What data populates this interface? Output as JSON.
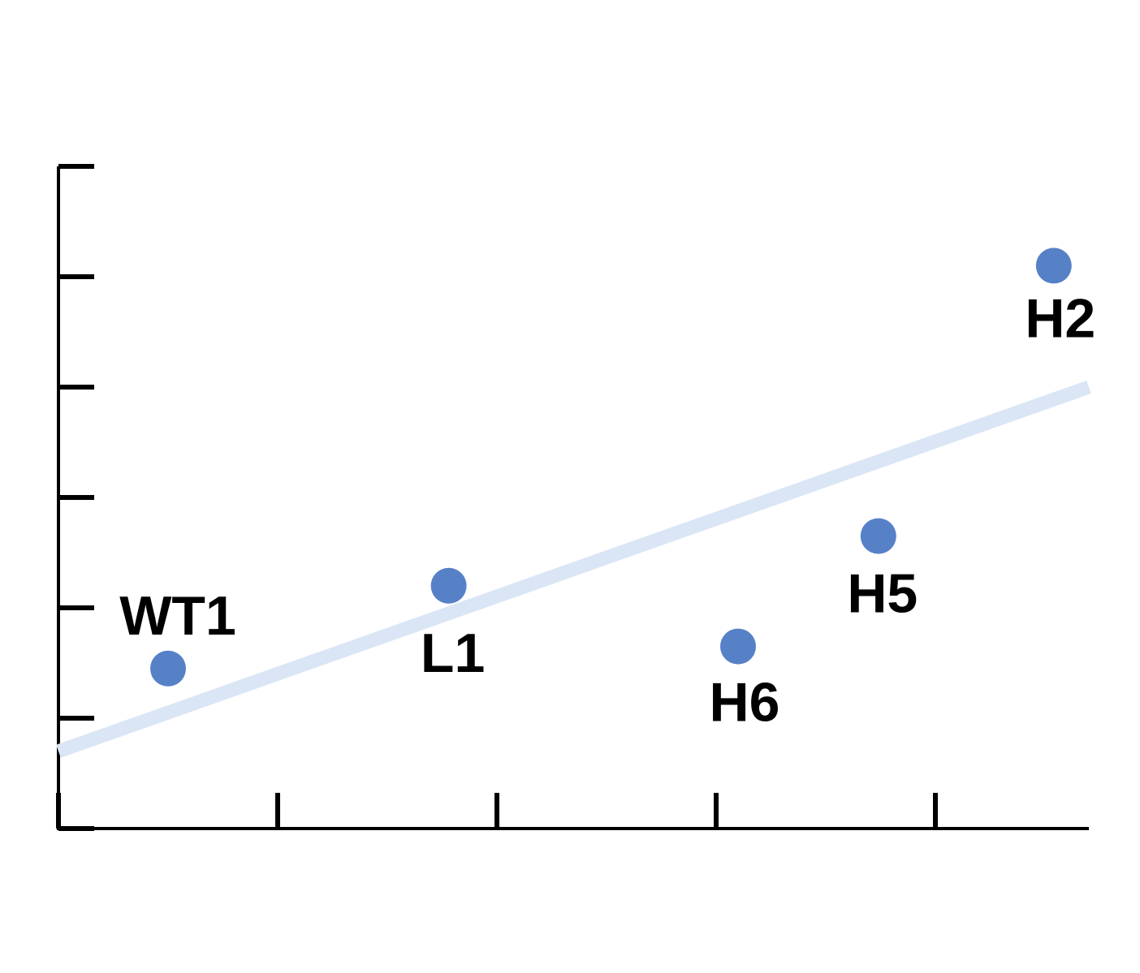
{
  "chart_data": {
    "type": "scatter",
    "title": "",
    "xlabel": "",
    "ylabel": "",
    "xlim": [
      0,
      4.7
    ],
    "ylim": [
      0,
      6
    ],
    "x_ticks": [
      0,
      1,
      2,
      3,
      4
    ],
    "y_ticks": [
      0,
      1,
      2,
      3,
      4,
      5,
      6
    ],
    "grid": false,
    "legend": "none",
    "points": [
      {
        "label": "WT1",
        "x": 0.5,
        "y": 1.45
      },
      {
        "label": "L1",
        "x": 1.78,
        "y": 2.2
      },
      {
        "label": "H6",
        "x": 3.1,
        "y": 1.65
      },
      {
        "label": "H5",
        "x": 3.74,
        "y": 2.65
      },
      {
        "label": "H2",
        "x": 4.54,
        "y": 5.1
      }
    ],
    "trendline": {
      "x": [
        0,
        4.7
      ],
      "y": [
        0.7,
        4.0
      ]
    },
    "colors": {
      "point": "#5681c7",
      "trendline": "#dae6f5",
      "axis": "#000000"
    }
  }
}
